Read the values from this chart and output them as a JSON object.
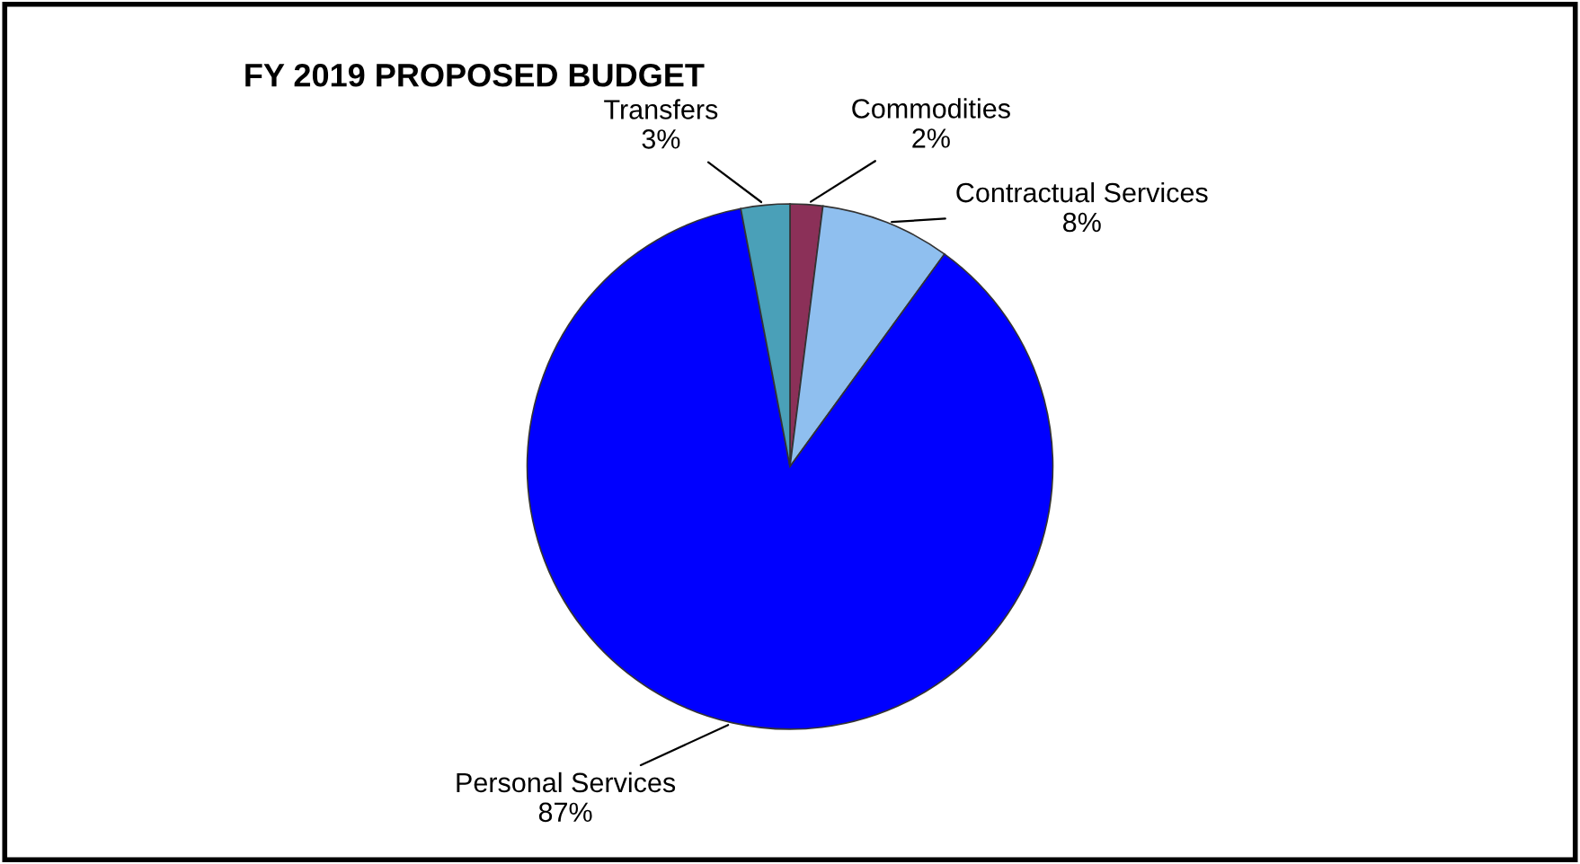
{
  "chart_data": {
    "type": "pie",
    "title": "FY 2019 PROPOSED BUDGET",
    "categories": [
      "Commodities",
      "Contractual Services",
      "Personal Services",
      "Transfers"
    ],
    "values": [
      2,
      8,
      87,
      3
    ],
    "value_labels": [
      "2%",
      "8%",
      "87%",
      "3%"
    ],
    "colors": [
      "#8b3058",
      "#8fbfef",
      "#0000ff",
      "#4aa0b8"
    ]
  }
}
